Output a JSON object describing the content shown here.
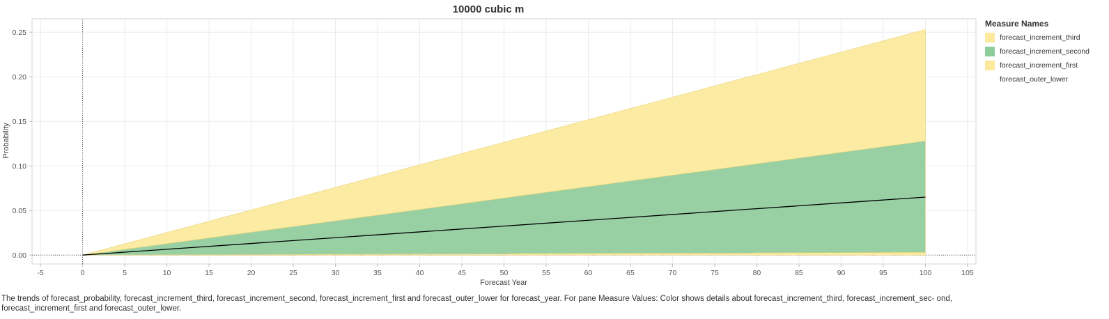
{
  "chart_data": {
    "type": "area",
    "title": "10000 cubic m",
    "xlabel": "Forecast Year",
    "ylabel": "Probability",
    "xlim": [
      -6,
      106
    ],
    "ylim": [
      -0.01,
      0.265
    ],
    "x_ticks": [
      -5,
      0,
      5,
      10,
      15,
      20,
      25,
      30,
      35,
      40,
      45,
      50,
      55,
      60,
      65,
      70,
      75,
      80,
      85,
      90,
      95,
      100,
      105
    ],
    "y_ticks": [
      0.0,
      0.05,
      0.1,
      0.15,
      0.2,
      0.25
    ],
    "y_tick_labels": [
      "0.00",
      "0.05",
      "0.10",
      "0.15",
      "0.20",
      "0.25"
    ],
    "grid": true,
    "legend_title": "Measure Names",
    "legend_position": "right",
    "legend": [
      {
        "name": "forecast_increment_third",
        "color": "#fce99b"
      },
      {
        "name": "forecast_increment_second",
        "color": "#8fcc9c"
      },
      {
        "name": "forecast_increment_first",
        "color": "#fce99b"
      },
      {
        "name": "forecast_outer_lower",
        "color": "#ffffff"
      }
    ],
    "x": [
      0,
      10,
      20,
      30,
      40,
      50,
      52,
      60,
      70,
      79,
      80,
      90,
      100
    ],
    "bands": [
      {
        "name": "forecast_outer_lower",
        "color": "#ffffff",
        "lower": [
          0,
          0,
          0,
          0,
          0,
          0,
          0,
          0,
          0,
          0,
          0,
          0,
          0
        ],
        "upper": [
          0,
          0,
          0,
          0,
          0,
          0,
          0,
          0,
          0,
          0,
          0,
          0,
          0
        ]
      },
      {
        "name": "forecast_increment_first",
        "color": "#fce99b",
        "lower": [
          0,
          0,
          0,
          0,
          0,
          0,
          0,
          0,
          0,
          0,
          0,
          0,
          0
        ],
        "upper": [
          0,
          0.0003,
          0.0005,
          0.0008,
          0.001,
          0.0012,
          0.0016,
          0.0018,
          0.002,
          0.0021,
          0.0025,
          0.0027,
          0.003
        ]
      },
      {
        "name": "forecast_increment_second",
        "color": "#8fcc9c",
        "lower": [
          0,
          0.0003,
          0.0005,
          0.0008,
          0.001,
          0.0012,
          0.0016,
          0.0018,
          0.002,
          0.0021,
          0.0025,
          0.0027,
          0.003
        ],
        "upper": [
          0,
          0.0128,
          0.0256,
          0.0384,
          0.0512,
          0.064,
          0.0666,
          0.0768,
          0.0896,
          0.1011,
          0.1024,
          0.1152,
          0.128
        ]
      },
      {
        "name": "forecast_increment_third",
        "color": "#fce99b",
        "lower": [
          0,
          0.0128,
          0.0256,
          0.0384,
          0.0512,
          0.064,
          0.0666,
          0.0768,
          0.0896,
          0.1011,
          0.1024,
          0.1152,
          0.128
        ],
        "upper": [
          0,
          0.0253,
          0.0506,
          0.0759,
          0.1012,
          0.1265,
          0.1316,
          0.1518,
          0.1771,
          0.1999,
          0.2024,
          0.2277,
          0.253
        ]
      }
    ],
    "series": [
      {
        "name": "forecast_probability",
        "color": "#000000",
        "values": [
          0,
          0.0065,
          0.013,
          0.0195,
          0.026,
          0.0325,
          0.0338,
          0.039,
          0.0455,
          0.0514,
          0.052,
          0.0585,
          0.065
        ]
      }
    ]
  },
  "caption": "The trends of forecast_probability, forecast_increment_third, forecast_increment_second, forecast_increment_first and forecast_outer_lower for forecast_year.  For pane Measure Values:  Color shows details about forecast_increment_third, forecast_increment_sec- ond, forecast_increment_first and forecast_outer_lower."
}
